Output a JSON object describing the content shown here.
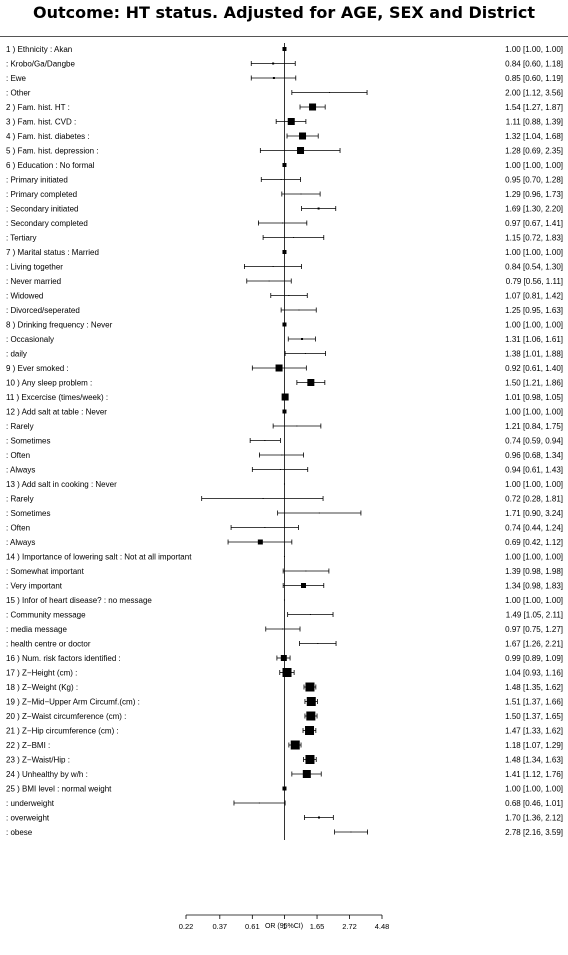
{
  "chart_data": {
    "type": "forest",
    "title": "Outcome: HT status. Adjusted for AGE, SEX and District",
    "xlabel": "OR (95%CI)",
    "xscale": "log",
    "xlim": [
      0.22,
      4.48
    ],
    "xticks": [
      0.22,
      0.37,
      0.61,
      1,
      1.65,
      2.72,
      4.48
    ],
    "xtick_labels": [
      "0.22",
      "0.37",
      "0.61",
      "1",
      "1.65",
      "2.72",
      "4.48"
    ],
    "reference_line": 1,
    "rows": [
      {
        "label": "1 ) Ethnicity : Akan",
        "or": 1.0,
        "lo": 1.0,
        "hi": 1.0,
        "w": 4,
        "ci_text": "1.00 [1.00, 1.00]"
      },
      {
        "label": ": Krobo/Ga/Dangbe",
        "or": 0.84,
        "lo": 0.6,
        "hi": 1.18,
        "w": 2,
        "ci_text": "0.84 [0.60, 1.18]"
      },
      {
        "label": ": Ewe",
        "or": 0.85,
        "lo": 0.6,
        "hi": 1.19,
        "w": 2,
        "ci_text": "0.85 [0.60, 1.19]"
      },
      {
        "label": ": Other",
        "or": 2.0,
        "lo": 1.12,
        "hi": 3.56,
        "w": 1,
        "ci_text": "2.00 [1.12, 3.56]"
      },
      {
        "label": "2 ) Fam. hist. HT :",
        "or": 1.54,
        "lo": 1.27,
        "hi": 1.87,
        "w": 7,
        "ci_text": "1.54 [1.27, 1.87]"
      },
      {
        "label": "3 ) Fam. hist. CVD :",
        "or": 1.11,
        "lo": 0.88,
        "hi": 1.39,
        "w": 7,
        "ci_text": "1.11 [0.88, 1.39]"
      },
      {
        "label": "4 ) Fam. hist. diabetes :",
        "or": 1.32,
        "lo": 1.04,
        "hi": 1.68,
        "w": 7,
        "ci_text": "1.32 [1.04, 1.68]"
      },
      {
        "label": "5 ) Fam. hist. depression :",
        "or": 1.28,
        "lo": 0.69,
        "hi": 2.35,
        "w": 7,
        "ci_text": "1.28 [0.69, 2.35]"
      },
      {
        "label": "6 ) Education : No formal",
        "or": 1.0,
        "lo": 1.0,
        "hi": 1.0,
        "w": 4,
        "ci_text": "1.00 [1.00, 1.00]"
      },
      {
        "label": ": Primary initiated",
        "or": 0.95,
        "lo": 0.7,
        "hi": 1.28,
        "w": 1,
        "ci_text": "0.95 [0.70, 1.28]"
      },
      {
        "label": ": Primary completed",
        "or": 1.29,
        "lo": 0.96,
        "hi": 1.73,
        "w": 1,
        "ci_text": "1.29 [0.96, 1.73]"
      },
      {
        "label": ": Secondary initiated",
        "or": 1.69,
        "lo": 1.3,
        "hi": 2.2,
        "w": 2,
        "ci_text": "1.69 [1.30, 2.20]"
      },
      {
        "label": ": Secondary completed",
        "or": 0.97,
        "lo": 0.67,
        "hi": 1.41,
        "w": 1,
        "ci_text": "0.97 [0.67, 1.41]"
      },
      {
        "label": ": Tertiary",
        "or": 1.15,
        "lo": 0.72,
        "hi": 1.83,
        "w": 1,
        "ci_text": "1.15 [0.72, 1.83]"
      },
      {
        "label": "7 ) Marital status : Married",
        "or": 1.0,
        "lo": 1.0,
        "hi": 1.0,
        "w": 4,
        "ci_text": "1.00 [1.00, 1.00]"
      },
      {
        "label": ": Living together",
        "or": 0.84,
        "lo": 0.54,
        "hi": 1.3,
        "w": 1,
        "ci_text": "0.84 [0.54, 1.30]"
      },
      {
        "label": ": Never married",
        "or": 0.79,
        "lo": 0.56,
        "hi": 1.11,
        "w": 1,
        "ci_text": "0.79 [0.56, 1.11]"
      },
      {
        "label": ": Widowed",
        "or": 1.07,
        "lo": 0.81,
        "hi": 1.42,
        "w": 1,
        "ci_text": "1.07 [0.81, 1.42]"
      },
      {
        "label": ": Divorced/seperated",
        "or": 1.25,
        "lo": 0.95,
        "hi": 1.63,
        "w": 1,
        "ci_text": "1.25 [0.95, 1.63]"
      },
      {
        "label": "8 ) Drinking frequency : Never",
        "or": 1.0,
        "lo": 1.0,
        "hi": 1.0,
        "w": 4,
        "ci_text": "1.00 [1.00, 1.00]"
      },
      {
        "label": ": Occasionaly",
        "or": 1.31,
        "lo": 1.06,
        "hi": 1.61,
        "w": 2,
        "ci_text": "1.31 [1.06, 1.61]"
      },
      {
        "label": ": daily",
        "or": 1.38,
        "lo": 1.01,
        "hi": 1.88,
        "w": 1,
        "ci_text": "1.38 [1.01, 1.88]"
      },
      {
        "label": "9 ) Ever smoked :",
        "or": 0.92,
        "lo": 0.61,
        "hi": 1.4,
        "w": 7,
        "ci_text": "0.92 [0.61, 1.40]"
      },
      {
        "label": "10 ) Any sleep problem :",
        "or": 1.5,
        "lo": 1.21,
        "hi": 1.86,
        "w": 7,
        "ci_text": "1.50 [1.21, 1.86]"
      },
      {
        "label": "11 ) Excercise (times/week) :",
        "or": 1.01,
        "lo": 0.98,
        "hi": 1.05,
        "w": 7,
        "ci_text": "1.01 [0.98, 1.05]"
      },
      {
        "label": "12 ) Add salt at table : Never",
        "or": 1.0,
        "lo": 1.0,
        "hi": 1.0,
        "w": 4,
        "ci_text": "1.00 [1.00, 1.00]"
      },
      {
        "label": ": Rarely",
        "or": 1.21,
        "lo": 0.84,
        "hi": 1.75,
        "w": 1,
        "ci_text": "1.21 [0.84, 1.75]"
      },
      {
        "label": ": Sometimes",
        "or": 0.74,
        "lo": 0.59,
        "hi": 0.94,
        "w": 1,
        "ci_text": "0.74 [0.59, 0.94]"
      },
      {
        "label": ": Often",
        "or": 0.96,
        "lo": 0.68,
        "hi": 1.34,
        "w": 1,
        "ci_text": "0.96 [0.68, 1.34]"
      },
      {
        "label": ": Always",
        "or": 0.94,
        "lo": 0.61,
        "hi": 1.43,
        "w": 1,
        "ci_text": "0.94 [0.61, 1.43]"
      },
      {
        "label": "13 ) Add salt in cooking : Never",
        "or": 1.0,
        "lo": 1.0,
        "hi": 1.0,
        "w": 1,
        "ci_text": "1.00 [1.00, 1.00]"
      },
      {
        "label": ": Rarely",
        "or": 0.72,
        "lo": 0.28,
        "hi": 1.81,
        "w": 1,
        "ci_text": "0.72 [0.28, 1.81]"
      },
      {
        "label": ": Sometimes",
        "or": 1.71,
        "lo": 0.9,
        "hi": 3.24,
        "w": 1,
        "ci_text": "1.71 [0.90, 3.24]"
      },
      {
        "label": ": Often",
        "or": 0.74,
        "lo": 0.44,
        "hi": 1.24,
        "w": 1,
        "ci_text": "0.74 [0.44, 1.24]"
      },
      {
        "label": ": Always",
        "or": 0.69,
        "lo": 0.42,
        "hi": 1.12,
        "w": 5,
        "ci_text": "0.69 [0.42, 1.12]"
      },
      {
        "label": "14 ) Importance of lowering salt : Not at all important",
        "or": 1.0,
        "lo": 1.0,
        "hi": 1.0,
        "w": 1,
        "ci_text": "1.00 [1.00, 1.00]"
      },
      {
        "label": ": Somewhat important",
        "or": 1.39,
        "lo": 0.98,
        "hi": 1.98,
        "w": 1,
        "ci_text": "1.39 [0.98, 1.98]"
      },
      {
        "label": ": Very important",
        "or": 1.34,
        "lo": 0.98,
        "hi": 1.83,
        "w": 5,
        "ci_text": "1.34 [0.98, 1.83]"
      },
      {
        "label": "15 ) Infor of heart disease? : no message",
        "or": 1.0,
        "lo": 1.0,
        "hi": 1.0,
        "w": 1,
        "ci_text": "1.00 [1.00, 1.00]"
      },
      {
        "label": ": Community message",
        "or": 1.49,
        "lo": 1.05,
        "hi": 2.11,
        "w": 1,
        "ci_text": "1.49 [1.05, 2.11]"
      },
      {
        "label": ": media message",
        "or": 0.97,
        "lo": 0.75,
        "hi": 1.27,
        "w": 1,
        "ci_text": "0.97 [0.75, 1.27]"
      },
      {
        "label": ": health centre or doctor",
        "or": 1.67,
        "lo": 1.26,
        "hi": 2.21,
        "w": 1,
        "ci_text": "1.67 [1.26, 2.21]"
      },
      {
        "label": "16 ) Num. risk factors identified :",
        "or": 0.99,
        "lo": 0.89,
        "hi": 1.09,
        "w": 6,
        "ci_text": "0.99 [0.89, 1.09]"
      },
      {
        "label": "17 ) Z−Height (cm) :",
        "or": 1.04,
        "lo": 0.93,
        "hi": 1.16,
        "w": 9,
        "ci_text": "1.04 [0.93, 1.16]"
      },
      {
        "label": "18 ) Z−Weight (Kg) :",
        "or": 1.48,
        "lo": 1.35,
        "hi": 1.62,
        "w": 9,
        "ci_text": "1.48 [1.35, 1.62]"
      },
      {
        "label": "19 ) Z−Mid−Upper Arm Circumf.(cm) :",
        "or": 1.51,
        "lo": 1.37,
        "hi": 1.66,
        "w": 9,
        "ci_text": "1.51 [1.37, 1.66]"
      },
      {
        "label": "20 ) Z−Waist circumference (cm) :",
        "or": 1.5,
        "lo": 1.37,
        "hi": 1.65,
        "w": 9,
        "ci_text": "1.50 [1.37, 1.65]"
      },
      {
        "label": "21 ) Z−Hip circumference (cm) :",
        "or": 1.47,
        "lo": 1.33,
        "hi": 1.62,
        "w": 9,
        "ci_text": "1.47 [1.33, 1.62]"
      },
      {
        "label": "22 ) Z−BMI :",
        "or": 1.18,
        "lo": 1.07,
        "hi": 1.29,
        "w": 9,
        "ci_text": "1.18 [1.07, 1.29]"
      },
      {
        "label": "23 ) Z−Waist/Hip :",
        "or": 1.48,
        "lo": 1.34,
        "hi": 1.63,
        "w": 9,
        "ci_text": "1.48 [1.34, 1.63]"
      },
      {
        "label": "24 ) Unhealthy by w/h :",
        "or": 1.41,
        "lo": 1.12,
        "hi": 1.76,
        "w": 8,
        "ci_text": "1.41 [1.12, 1.76]"
      },
      {
        "label": "25 ) BMI level : normal weight",
        "or": 1.0,
        "lo": 1.0,
        "hi": 1.0,
        "w": 4,
        "ci_text": "1.00 [1.00, 1.00]"
      },
      {
        "label": ": underweight",
        "or": 0.68,
        "lo": 0.46,
        "hi": 1.01,
        "w": 1,
        "ci_text": "0.68 [0.46, 1.01]"
      },
      {
        "label": ": overweight",
        "or": 1.7,
        "lo": 1.36,
        "hi": 2.12,
        "w": 2,
        "ci_text": "1.70 [1.36, 2.12]"
      },
      {
        "label": ": obese",
        "or": 2.78,
        "lo": 2.16,
        "hi": 3.59,
        "w": 1,
        "ci_text": "2.78 [2.16, 3.59]"
      }
    ]
  }
}
